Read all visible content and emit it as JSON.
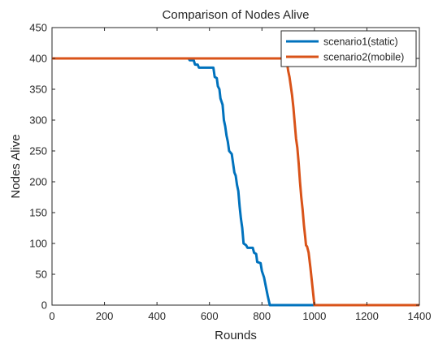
{
  "chart_data": {
    "type": "line",
    "title": "Comparison of Nodes Alive",
    "xlabel": "Rounds",
    "ylabel": "Nodes Alive",
    "xlim": [
      0,
      1400
    ],
    "ylim": [
      0,
      450
    ],
    "xticks": [
      0,
      200,
      400,
      600,
      800,
      1000,
      1200,
      1400
    ],
    "yticks": [
      0,
      50,
      100,
      150,
      200,
      250,
      300,
      350,
      400,
      450
    ],
    "grid": false,
    "legend_position": "top-right",
    "series": [
      {
        "name": "scenario1(static)",
        "color": "#0072BD",
        "points": [
          [
            0,
            400
          ],
          [
            520,
            400
          ],
          [
            525,
            397
          ],
          [
            540,
            397
          ],
          [
            545,
            390
          ],
          [
            555,
            390
          ],
          [
            560,
            385
          ],
          [
            615,
            385
          ],
          [
            620,
            370
          ],
          [
            628,
            368
          ],
          [
            632,
            355
          ],
          [
            638,
            350
          ],
          [
            642,
            335
          ],
          [
            650,
            325
          ],
          [
            655,
            300
          ],
          [
            660,
            290
          ],
          [
            665,
            275
          ],
          [
            670,
            265
          ],
          [
            675,
            250
          ],
          [
            685,
            245
          ],
          [
            690,
            230
          ],
          [
            695,
            215
          ],
          [
            700,
            210
          ],
          [
            705,
            195
          ],
          [
            710,
            185
          ],
          [
            715,
            160
          ],
          [
            720,
            140
          ],
          [
            725,
            125
          ],
          [
            730,
            100
          ],
          [
            740,
            97
          ],
          [
            745,
            93
          ],
          [
            765,
            93
          ],
          [
            770,
            85
          ],
          [
            778,
            83
          ],
          [
            782,
            70
          ],
          [
            795,
            68
          ],
          [
            800,
            55
          ],
          [
            808,
            45
          ],
          [
            815,
            30
          ],
          [
            822,
            15
          ],
          [
            830,
            0
          ],
          [
            1400,
            0
          ]
        ]
      },
      {
        "name": "scenario2(mobile)",
        "color": "#D95319",
        "points": [
          [
            0,
            400
          ],
          [
            890,
            400
          ],
          [
            895,
            395
          ],
          [
            900,
            380
          ],
          [
            905,
            370
          ],
          [
            910,
            355
          ],
          [
            915,
            340
          ],
          [
            920,
            320
          ],
          [
            925,
            295
          ],
          [
            930,
            270
          ],
          [
            935,
            255
          ],
          [
            940,
            230
          ],
          [
            945,
            200
          ],
          [
            950,
            175
          ],
          [
            955,
            155
          ],
          [
            960,
            130
          ],
          [
            965,
            110
          ],
          [
            968,
            97
          ],
          [
            972,
            95
          ],
          [
            978,
            85
          ],
          [
            985,
            60
          ],
          [
            990,
            40
          ],
          [
            995,
            20
          ],
          [
            1000,
            0
          ],
          [
            1400,
            0
          ]
        ]
      }
    ]
  }
}
